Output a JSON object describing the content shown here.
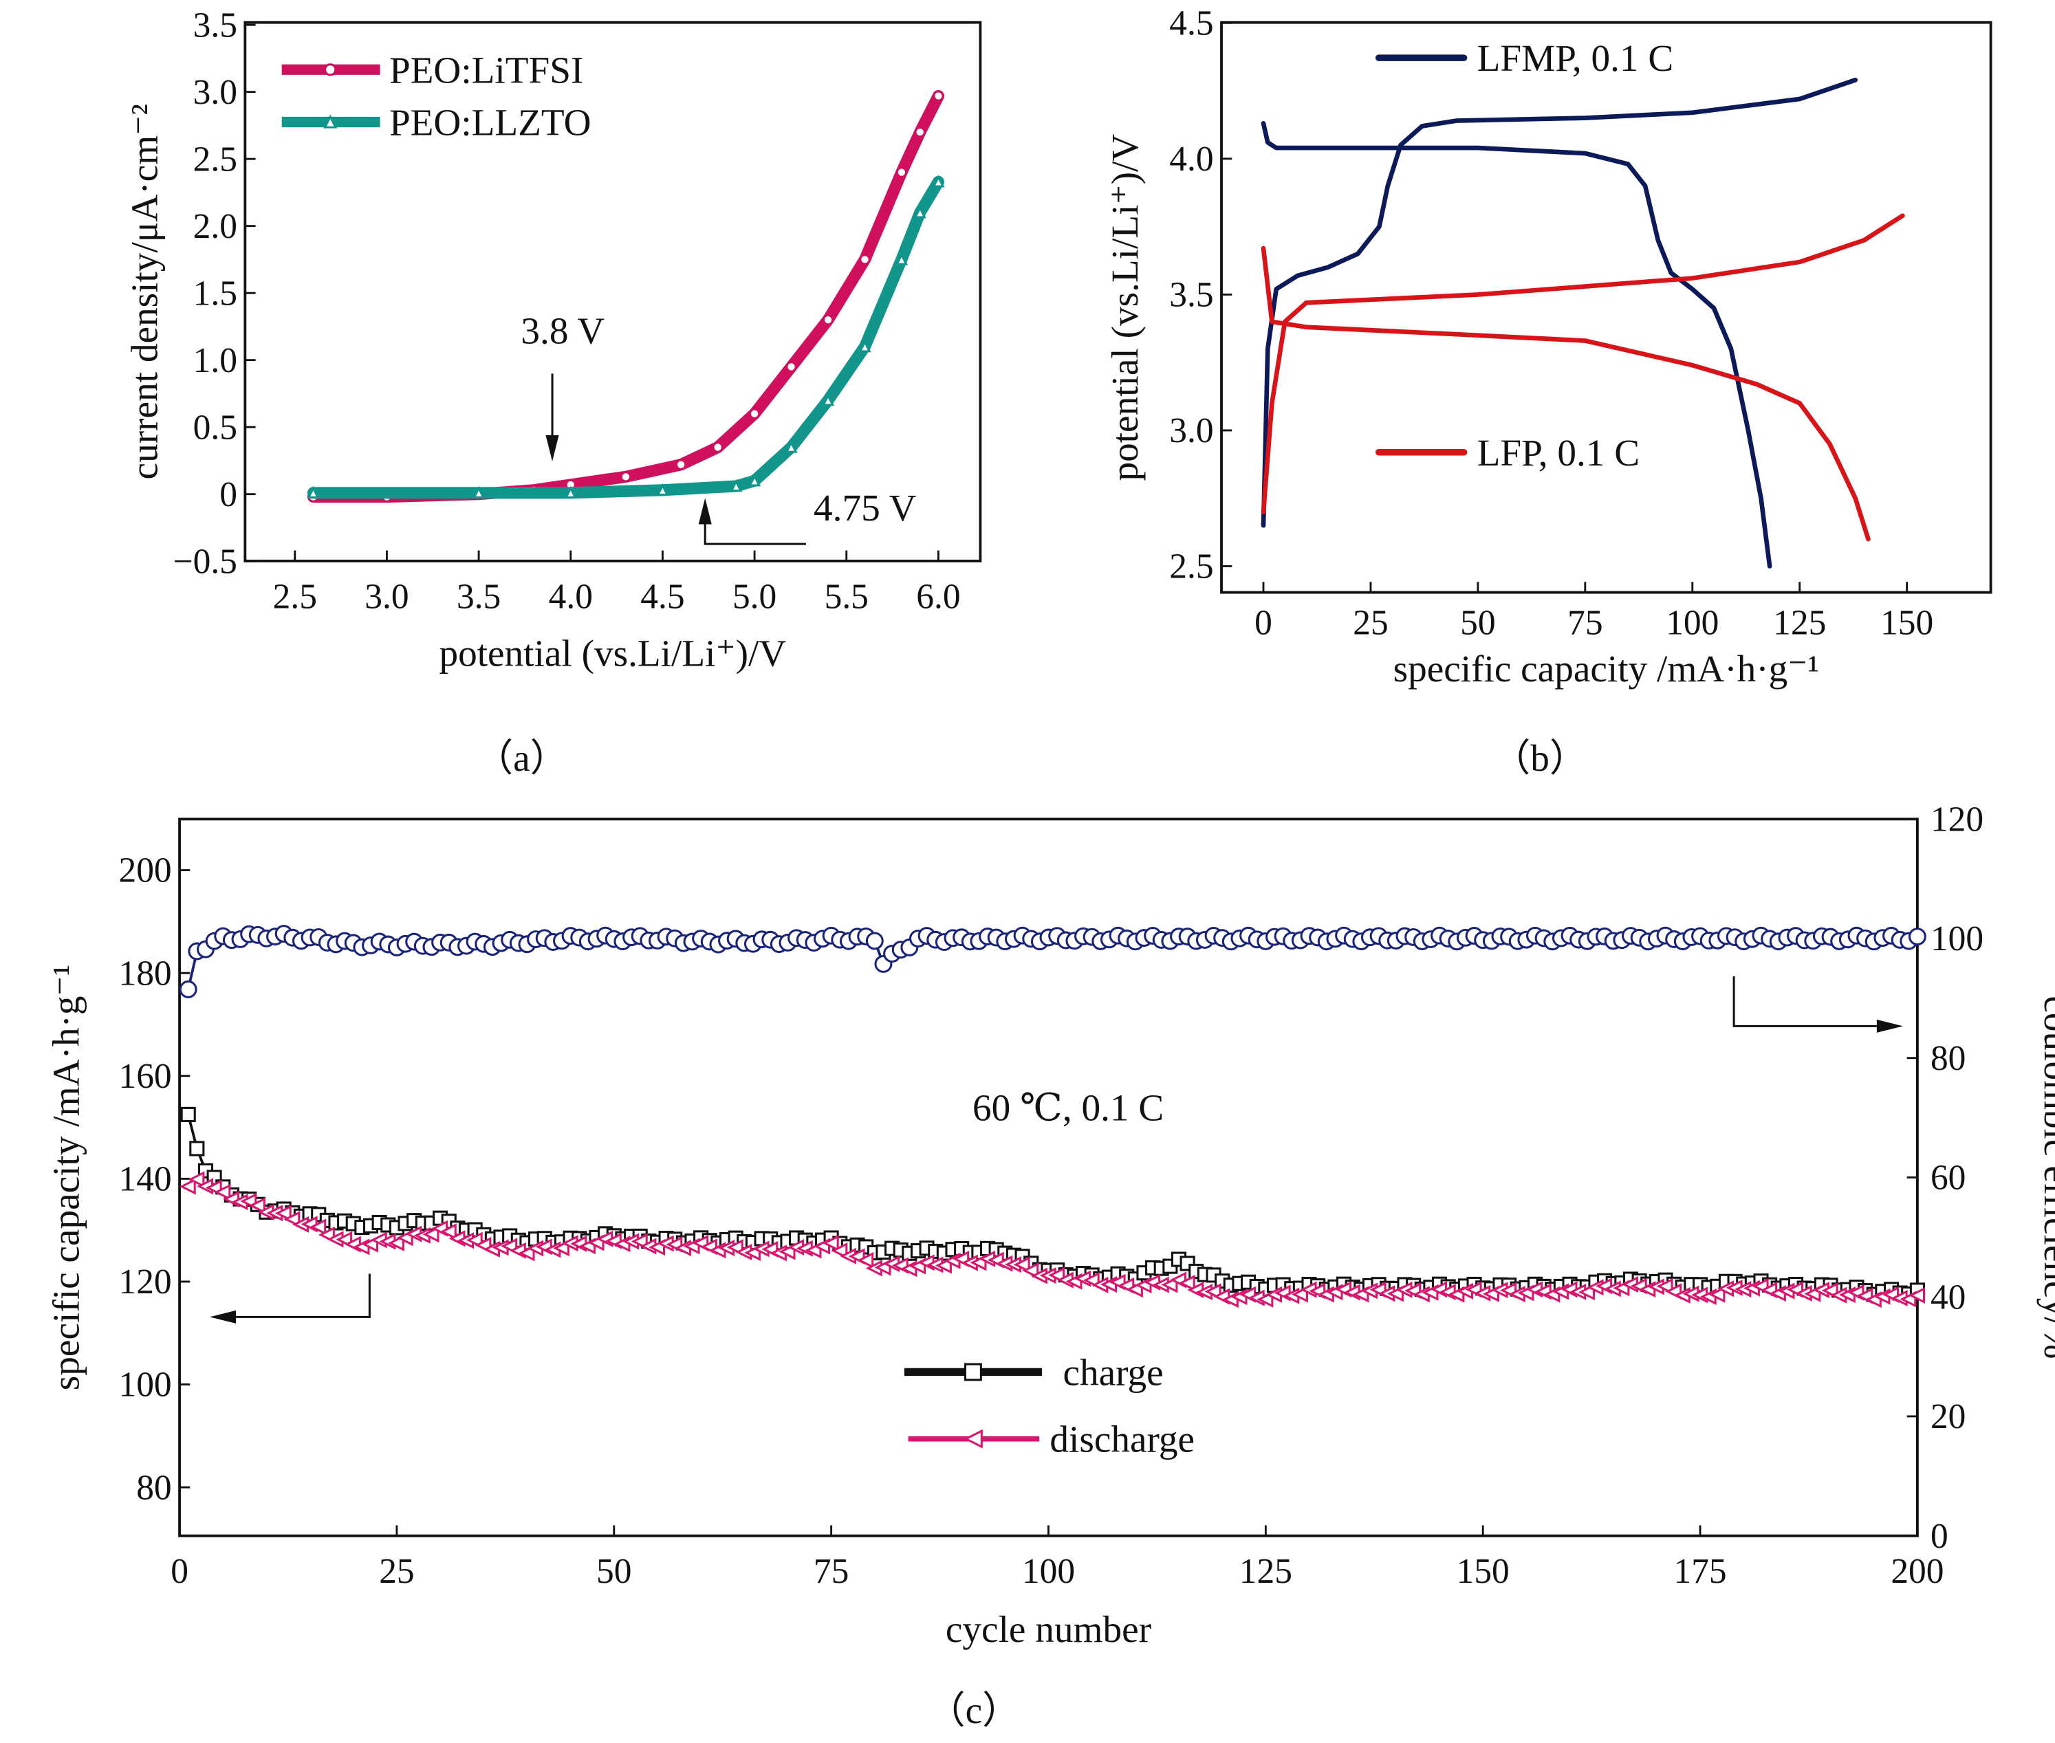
{
  "panels": {
    "a": "（a）",
    "b": "（b）",
    "c": "（c）"
  },
  "chart_data": [
    {
      "type": "line",
      "panel": "a",
      "xlabel": "potential (vs.Li/Li⁺)/V",
      "ylabel": "current density/μA·cm⁻²",
      "xlim": [
        2.25,
        6.25
      ],
      "ylim": [
        -0.5,
        3.5
      ],
      "xticks": [
        "2.5",
        "3.0",
        "3.5",
        "4.0",
        "4.5",
        "5.0",
        "5.5",
        "6.0"
      ],
      "xtick_values": [
        2.5,
        3.0,
        3.5,
        4.0,
        4.5,
        5.0,
        5.5,
        6.0
      ],
      "yticks": [
        "−0.5",
        "0",
        "0.5",
        "1.0",
        "1.5",
        "2.0",
        "2.5",
        "3.0",
        "3.5"
      ],
      "ytick_values": [
        -0.5,
        0,
        0.5,
        1.0,
        1.5,
        2.0,
        2.5,
        3.0,
        3.5
      ],
      "legend_position": "top-left",
      "annotations": [
        {
          "text": "3.8 V",
          "x": 3.9,
          "y": 0.25
        },
        {
          "text": "4.75 V",
          "x": 4.75,
          "y": -0.03
        }
      ],
      "series": [
        {
          "name": "PEO:LiTFSI",
          "color": "#d0105e",
          "marker": "circle",
          "x": [
            2.6,
            3.0,
            3.5,
            3.8,
            4.0,
            4.3,
            4.6,
            4.8,
            5.0,
            5.2,
            5.4,
            5.6,
            5.8,
            5.9,
            6.0
          ],
          "y": [
            -0.02,
            -0.02,
            0.0,
            0.03,
            0.07,
            0.13,
            0.22,
            0.35,
            0.6,
            0.95,
            1.3,
            1.75,
            2.4,
            2.7,
            2.97
          ]
        },
        {
          "name": "PEO:LLZTO",
          "color": "#12968c",
          "marker": "triangle",
          "x": [
            2.6,
            3.5,
            4.0,
            4.5,
            4.9,
            5.0,
            5.2,
            5.4,
            5.6,
            5.8,
            5.9,
            6.0
          ],
          "y": [
            0.01,
            0.01,
            0.01,
            0.03,
            0.06,
            0.1,
            0.35,
            0.7,
            1.1,
            1.75,
            2.1,
            2.33
          ]
        }
      ]
    },
    {
      "type": "line",
      "panel": "b",
      "xlabel": "specific capacity /mA·h·g⁻¹",
      "ylabel": "potential (vs.Li/Li⁺)/V",
      "xlim": [
        -10,
        170
      ],
      "ylim": [
        2.4,
        4.5
      ],
      "xticks": [
        "0",
        "25",
        "50",
        "75",
        "100",
        "125",
        "150"
      ],
      "xtick_values": [
        0,
        25,
        50,
        75,
        100,
        125,
        150
      ],
      "yticks": [
        "2.5",
        "3.0",
        "3.5",
        "4.0",
        "4.5"
      ],
      "ytick_values": [
        2.5,
        3.0,
        3.5,
        4.0,
        4.5
      ],
      "series": [
        {
          "name": "LFMP, 0.1 C",
          "color": "#0d1a5a",
          "charge": {
            "x": [
              0,
              1,
              3,
              8,
              15,
              22,
              27,
              29,
              32,
              37,
              45,
              75,
              100,
              125,
              138
            ],
            "y": [
              2.65,
              3.3,
              3.52,
              3.57,
              3.6,
              3.65,
              3.75,
              3.9,
              4.05,
              4.12,
              4.14,
              4.15,
              4.17,
              4.22,
              4.29
            ]
          },
          "discharge": {
            "x": [
              0,
              1,
              3,
              50,
              75,
              85,
              89,
              92,
              95,
              100,
              105,
              109,
              113,
              116,
              118
            ],
            "y": [
              4.13,
              4.06,
              4.04,
              4.04,
              4.02,
              3.98,
              3.9,
              3.7,
              3.58,
              3.52,
              3.45,
              3.3,
              3.0,
              2.75,
              2.5
            ]
          }
        },
        {
          "name": "LFP, 0.1 C",
          "color": "#d81418",
          "charge": {
            "x": [
              0,
              2,
              5,
              10,
              50,
              100,
              125,
              140,
              149
            ],
            "y": [
              2.7,
              3.1,
              3.4,
              3.47,
              3.5,
              3.56,
              3.62,
              3.7,
              3.79
            ]
          },
          "discharge": {
            "x": [
              0,
              2,
              10,
              50,
              75,
              100,
              115,
              125,
              132,
              138,
              141
            ],
            "y": [
              3.67,
              3.4,
              3.38,
              3.35,
              3.33,
              3.24,
              3.17,
              3.1,
              2.95,
              2.75,
              2.6
            ]
          }
        }
      ]
    },
    {
      "type": "scatter",
      "panel": "c",
      "xlabel": "cycle number",
      "ylabel": "specific capacity /mA·h·g⁻¹",
      "y2label": "coulombic efficiency/%",
      "xlim": [
        0,
        200
      ],
      "ylim": [
        70.5,
        210
      ],
      "y2lim": [
        0,
        120
      ],
      "xticks": [
        "0",
        "25",
        "50",
        "75",
        "100",
        "125",
        "150",
        "175",
        "200"
      ],
      "xtick_values": [
        0,
        25,
        50,
        75,
        100,
        125,
        150,
        175,
        200
      ],
      "yticks": [
        "80",
        "100",
        "120",
        "140",
        "160",
        "180",
        "200"
      ],
      "ytick_values": [
        80,
        100,
        120,
        140,
        160,
        180,
        200
      ],
      "y2ticks": [
        "0",
        "20",
        "40",
        "60",
        "80",
        "100",
        "120"
      ],
      "y2tick_values": [
        0,
        20,
        40,
        60,
        80,
        100,
        120
      ],
      "annotation": "60 ℃, 0.1 C",
      "series": [
        {
          "name": "charge",
          "color": "#111111",
          "marker": "square",
          "axis": "left",
          "x": [
            1,
            2,
            3,
            5,
            10,
            15,
            20,
            25,
            30,
            35,
            40,
            45,
            50,
            55,
            60,
            65,
            70,
            75,
            80,
            85,
            90,
            95,
            100,
            105,
            110,
            115,
            120,
            125,
            130,
            135,
            140,
            145,
            150,
            155,
            160,
            165,
            170,
            175,
            180,
            185,
            190,
            195,
            200
          ],
          "y": [
            152,
            146,
            142,
            138,
            134,
            133,
            131,
            131,
            132,
            129,
            128,
            128,
            129,
            128,
            128,
            128,
            128,
            128,
            126,
            126,
            126,
            126,
            122,
            121,
            121,
            124,
            120,
            119,
            119,
            119,
            119,
            119,
            119,
            119,
            119,
            120,
            120,
            119,
            120,
            119,
            119,
            118,
            118
          ]
        },
        {
          "name": "discharge",
          "color": "#d8166e",
          "marker": "triangle-left",
          "axis": "left",
          "x": [
            1,
            2,
            5,
            10,
            15,
            20,
            25,
            30,
            35,
            40,
            45,
            50,
            55,
            60,
            65,
            70,
            75,
            80,
            85,
            90,
            95,
            100,
            105,
            110,
            115,
            120,
            125,
            130,
            135,
            140,
            145,
            150,
            155,
            160,
            165,
            170,
            175,
            180,
            185,
            190,
            195,
            200
          ],
          "y": [
            138,
            140,
            137,
            134,
            131,
            127,
            128,
            130,
            127,
            126,
            127,
            128,
            127,
            127,
            126,
            126,
            127,
            123,
            123,
            124,
            124,
            121,
            120,
            119,
            120,
            117,
            117,
            118,
            118,
            118,
            118,
            118,
            118,
            118,
            119,
            119,
            117,
            119,
            118,
            118,
            117,
            117
          ]
        },
        {
          "name": "coulombic efficiency",
          "color": "#1a237a",
          "marker": "circle",
          "axis": "right",
          "x": [
            1,
            2,
            5,
            10,
            15,
            20,
            25,
            30,
            35,
            40,
            45,
            50,
            55,
            60,
            65,
            70,
            75,
            80,
            81,
            85,
            90,
            95,
            100,
            105,
            110,
            115,
            120,
            125,
            130,
            135,
            140,
            145,
            150,
            155,
            160,
            165,
            170,
            175,
            180,
            185,
            190,
            195,
            200
          ],
          "y": [
            91,
            98,
            100,
            100.5,
            100,
            99,
            99,
            99,
            99,
            99.5,
            100,
            100,
            100,
            99.5,
            99.5,
            99.5,
            100,
            100,
            96,
            100,
            99.8,
            100,
            100,
            100,
            100,
            100,
            100,
            100,
            100,
            100,
            100,
            100,
            100,
            100,
            100,
            100,
            100,
            100,
            100,
            100,
            100,
            100,
            100
          ]
        }
      ]
    }
  ]
}
